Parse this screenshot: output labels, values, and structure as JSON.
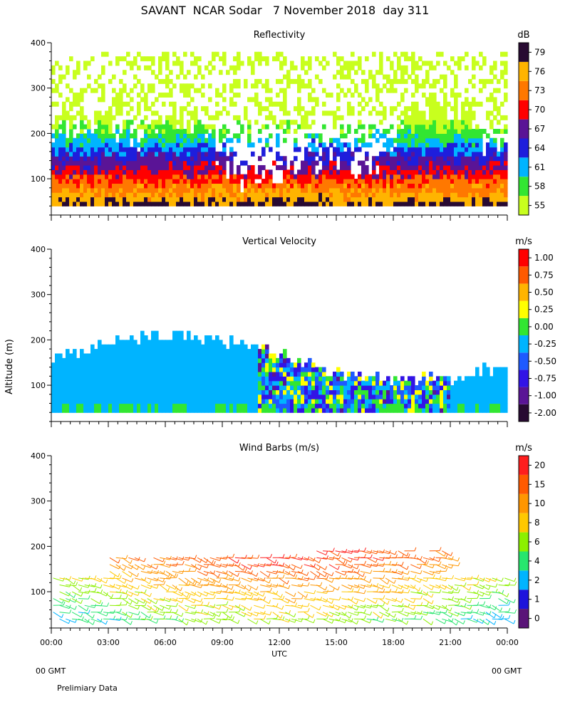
{
  "title": "SAVANT  NCAR Sodar   7 November 2018  day 311",
  "ylabel": "Altitude (m)",
  "xlabel": "UTC",
  "footer": {
    "left_gmt": "00 GMT",
    "right_gmt": "00 GMT",
    "note": "Prelimiary Data"
  },
  "chart_data": [
    {
      "type": "heatmap",
      "title": "Reflectivity",
      "units": "dB",
      "x_ticks": [
        "00:00",
        "03:00",
        "06:00",
        "09:00",
        "12:00",
        "15:00",
        "18:00",
        "21:00",
        "00:00"
      ],
      "xlim": [
        0,
        24
      ],
      "y_ticks": [
        "100",
        "200",
        "300",
        "400"
      ],
      "y_tick_values": [
        100,
        200,
        300,
        400
      ],
      "ylim": [
        20,
        400
      ],
      "colorbar": {
        "labels": [
          "55",
          "58",
          "61",
          "64",
          "67",
          "70",
          "73",
          "76",
          "79"
        ],
        "colors": [
          "#c8ff1e",
          "#32e632",
          "#00b4ff",
          "#1e1edc",
          "#5a1496",
          "#ff0000",
          "#ff7800",
          "#ffb400",
          "#280a32"
        ]
      }
    },
    {
      "type": "heatmap",
      "title": "Vertical Velocity",
      "units": "m/s",
      "x_ticks": [
        "00:00",
        "03:00",
        "06:00",
        "09:00",
        "12:00",
        "15:00",
        "18:00",
        "21:00",
        "00:00"
      ],
      "xlim": [
        0,
        24
      ],
      "y_ticks": [
        "100",
        "200",
        "300",
        "400"
      ],
      "y_tick_values": [
        100,
        200,
        300,
        400
      ],
      "ylim": [
        20,
        400
      ],
      "colorbar": {
        "labels": [
          "-2.00",
          "-1.00",
          "-0.75",
          "-0.50",
          "-0.25",
          "0.00",
          "0.25",
          "0.50",
          "0.75",
          "1.00"
        ],
        "colors": [
          "#280a32",
          "#5a1496",
          "#3214e6",
          "#1e5aff",
          "#00b4ff",
          "#32e632",
          "#ffff00",
          "#ffb400",
          "#ff5a00",
          "#ff0000"
        ]
      }
    },
    {
      "type": "scatter",
      "title": "Wind Barbs (m/s)",
      "units": "m/s",
      "x_ticks": [
        "00:00",
        "03:00",
        "06:00",
        "09:00",
        "12:00",
        "15:00",
        "18:00",
        "21:00",
        "00:00"
      ],
      "xlim": [
        0,
        24
      ],
      "y_ticks": [
        "100",
        "200",
        "300",
        "400"
      ],
      "y_tick_values": [
        100,
        200,
        300,
        400
      ],
      "ylim": [
        20,
        400
      ],
      "colorbar": {
        "labels": [
          "0",
          "1",
          "2",
          "4",
          "6",
          "8",
          "10",
          "15",
          "20"
        ],
        "colors": [
          "#5a1478",
          "#1e14dc",
          "#00b4ff",
          "#28e66e",
          "#8cf000",
          "#ffc800",
          "#ff9600",
          "#ff5a00",
          "#ff1e1e"
        ]
      }
    }
  ]
}
